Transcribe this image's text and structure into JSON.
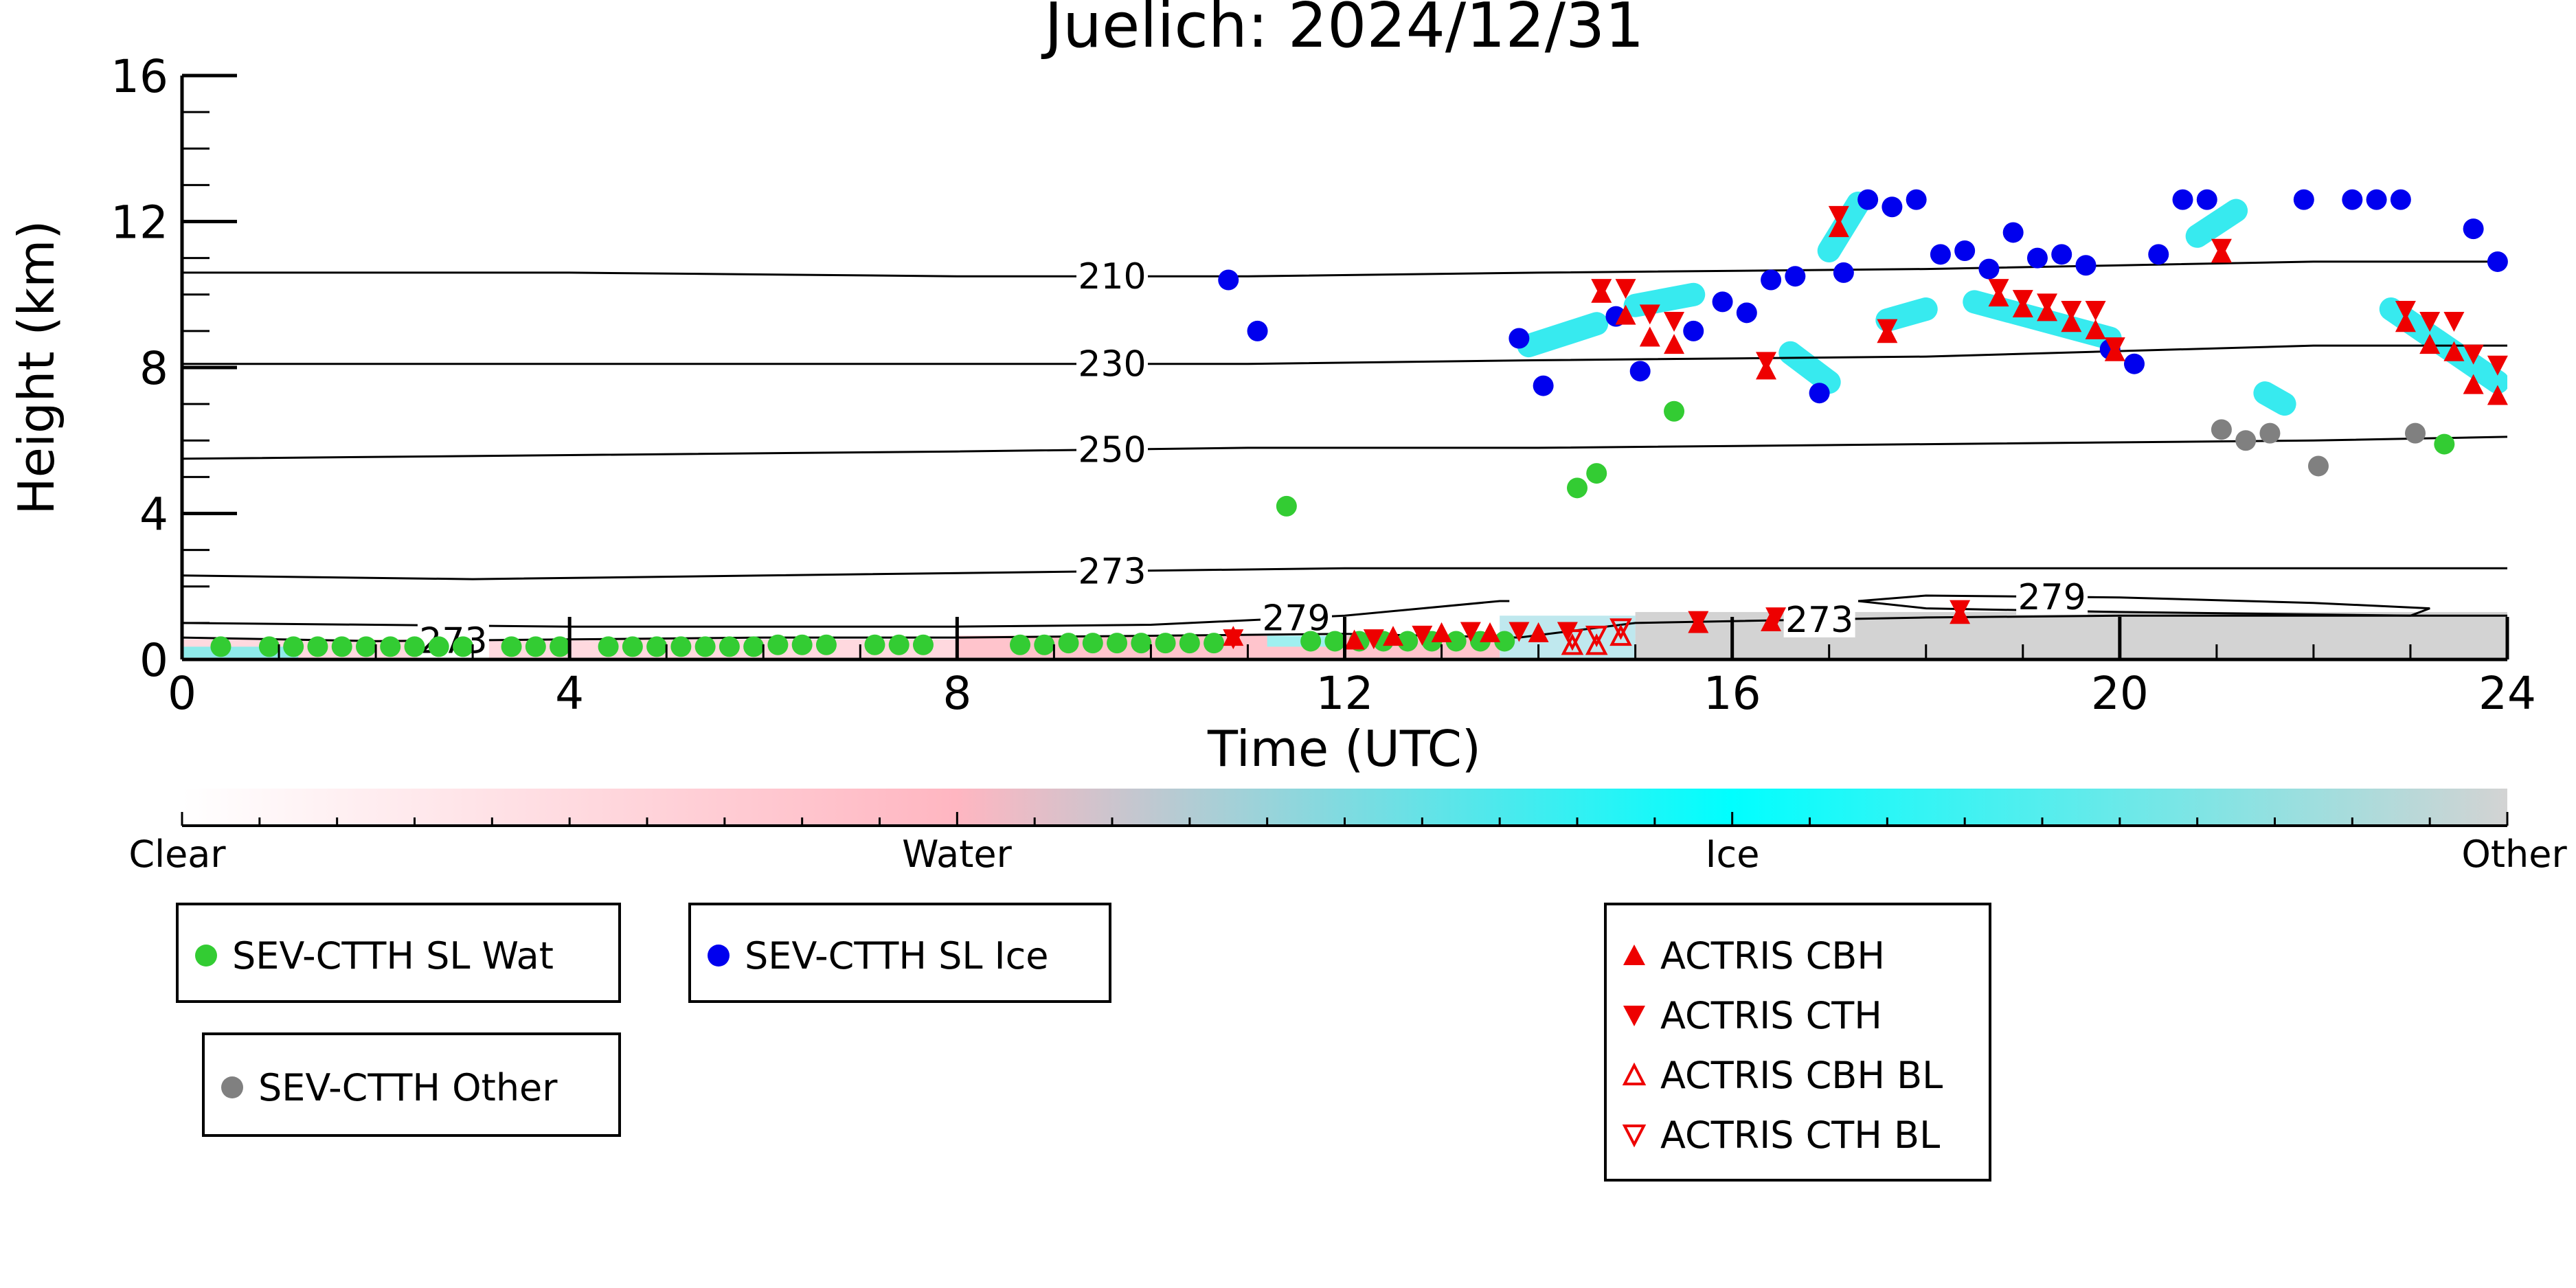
{
  "chart_data": {
    "type": "scatter",
    "title": "Juelich: 2024/12/31",
    "xlabel": "Time (UTC)",
    "ylabel": "Height (km)",
    "xlim": [
      0,
      24
    ],
    "ylim": [
      0,
      16
    ],
    "x_ticks": [
      0,
      4,
      8,
      12,
      16,
      20,
      24
    ],
    "y_ticks": [
      0,
      4,
      8,
      12,
      16
    ],
    "colorbar": {
      "labels": [
        "Clear",
        "Water",
        "Ice",
        "Other"
      ],
      "colors": [
        "#ffffff",
        "#ffb6c1",
        "#00ffff",
        "#d3d3d3"
      ]
    },
    "contours": [
      {
        "label": "210",
        "label_x": 9.6,
        "points": [
          [
            0,
            10.6
          ],
          [
            4,
            10.6
          ],
          [
            8,
            10.5
          ],
          [
            11,
            10.5
          ],
          [
            14,
            10.6
          ],
          [
            18,
            10.7
          ],
          [
            22,
            10.9
          ],
          [
            24,
            10.9
          ]
        ]
      },
      {
        "label": "230",
        "label_x": 9.6,
        "points": [
          [
            0,
            8.1
          ],
          [
            4,
            8.1
          ],
          [
            8,
            8.1
          ],
          [
            11,
            8.1
          ],
          [
            14,
            8.2
          ],
          [
            18,
            8.3
          ],
          [
            22,
            8.6
          ],
          [
            24,
            8.6
          ]
        ]
      },
      {
        "label": "250",
        "label_x": 9.6,
        "points": [
          [
            0,
            5.5
          ],
          [
            4,
            5.6
          ],
          [
            8,
            5.7
          ],
          [
            11,
            5.8
          ],
          [
            14,
            5.8
          ],
          [
            18,
            5.9
          ],
          [
            22,
            6.0
          ],
          [
            24,
            6.1
          ]
        ]
      },
      {
        "label": "273",
        "label_x": 9.6,
        "points": [
          [
            0,
            2.3
          ],
          [
            3,
            2.2
          ],
          [
            6,
            2.3
          ],
          [
            9,
            2.4
          ],
          [
            12,
            2.5
          ],
          [
            16,
            2.5
          ],
          [
            20,
            2.5
          ],
          [
            24,
            2.5
          ]
        ]
      },
      {
        "label": "279",
        "label_x": 11.5,
        "points": [
          [
            0,
            1.0
          ],
          [
            4,
            0.9
          ],
          [
            8,
            0.9
          ],
          [
            10,
            0.95
          ],
          [
            12,
            1.2
          ],
          [
            13.6,
            1.6
          ],
          [
            13.7,
            1.6
          ]
        ]
      },
      {
        "label": "273",
        "label_x": 16.9,
        "points": [
          [
            13.8,
            0.6
          ],
          [
            15,
            1.0
          ],
          [
            16,
            1.05
          ],
          [
            18,
            1.15
          ],
          [
            20,
            1.2
          ],
          [
            23,
            1.2
          ],
          [
            24,
            1.2
          ]
        ]
      },
      {
        "label": "279",
        "label_x": 19.3,
        "points": [
          [
            17.3,
            1.6
          ],
          [
            18,
            1.75
          ],
          [
            20,
            1.7
          ],
          [
            22,
            1.55
          ],
          [
            23.2,
            1.4
          ],
          [
            23.0,
            1.2
          ],
          [
            20,
            1.3
          ],
          [
            18,
            1.4
          ],
          [
            17.3,
            1.6
          ]
        ]
      },
      {
        "label": "273",
        "label_x": 2.8,
        "points": [
          [
            0,
            0.6
          ],
          [
            2,
            0.5
          ],
          [
            4,
            0.55
          ],
          [
            6,
            0.6
          ],
          [
            8,
            0.6
          ],
          [
            10,
            0.65
          ],
          [
            12,
            0.7
          ],
          [
            13.8,
            0.6
          ]
        ]
      }
    ],
    "series": [
      {
        "name": "SEV-CTTH SL Wat",
        "marker": "circle",
        "color": "#33cc33",
        "points": [
          [
            0.4,
            0.35
          ],
          [
            0.9,
            0.35
          ],
          [
            1.15,
            0.35
          ],
          [
            1.4,
            0.35
          ],
          [
            1.65,
            0.35
          ],
          [
            1.9,
            0.35
          ],
          [
            2.15,
            0.35
          ],
          [
            2.4,
            0.35
          ],
          [
            2.65,
            0.35
          ],
          [
            2.9,
            0.35
          ],
          [
            3.4,
            0.35
          ],
          [
            3.65,
            0.35
          ],
          [
            3.9,
            0.35
          ],
          [
            4.4,
            0.35
          ],
          [
            4.65,
            0.35
          ],
          [
            4.9,
            0.35
          ],
          [
            5.15,
            0.35
          ],
          [
            5.4,
            0.35
          ],
          [
            5.65,
            0.35
          ],
          [
            5.9,
            0.35
          ],
          [
            6.15,
            0.4
          ],
          [
            6.4,
            0.4
          ],
          [
            6.65,
            0.4
          ],
          [
            7.15,
            0.4
          ],
          [
            7.4,
            0.4
          ],
          [
            7.65,
            0.4
          ],
          [
            8.65,
            0.4
          ],
          [
            8.9,
            0.4
          ],
          [
            9.15,
            0.45
          ],
          [
            9.4,
            0.45
          ],
          [
            9.65,
            0.45
          ],
          [
            9.9,
            0.45
          ],
          [
            10.15,
            0.45
          ],
          [
            10.4,
            0.45
          ],
          [
            10.65,
            0.45
          ],
          [
            11.65,
            0.5
          ],
          [
            11.9,
            0.5
          ],
          [
            12.15,
            0.5
          ],
          [
            12.4,
            0.5
          ],
          [
            12.65,
            0.5
          ],
          [
            12.9,
            0.5
          ],
          [
            13.15,
            0.5
          ],
          [
            13.4,
            0.5
          ],
          [
            13.65,
            0.5
          ],
          [
            11.4,
            4.2
          ],
          [
            14.4,
            4.7
          ],
          [
            14.6,
            5.1
          ],
          [
            15.4,
            6.8
          ],
          [
            23.35,
            5.9
          ]
        ]
      },
      {
        "name": "SEV-CTTH SL Ice",
        "marker": "circle",
        "color": "#0000ee",
        "points": [
          [
            10.8,
            10.4
          ],
          [
            11.1,
            9.0
          ],
          [
            13.8,
            8.8
          ],
          [
            14.05,
            7.5
          ],
          [
            14.8,
            9.4
          ],
          [
            15.05,
            7.9
          ],
          [
            15.6,
            9.0
          ],
          [
            15.9,
            9.8
          ],
          [
            16.15,
            9.5
          ],
          [
            16.4,
            10.4
          ],
          [
            16.65,
            10.5
          ],
          [
            16.9,
            7.3
          ],
          [
            17.15,
            10.6
          ],
          [
            17.4,
            12.6
          ],
          [
            17.65,
            12.4
          ],
          [
            17.9,
            12.6
          ],
          [
            18.15,
            11.1
          ],
          [
            18.4,
            11.2
          ],
          [
            18.65,
            10.7
          ],
          [
            18.9,
            11.7
          ],
          [
            19.15,
            11.0
          ],
          [
            19.4,
            11.1
          ],
          [
            19.65,
            10.8
          ],
          [
            19.9,
            8.5
          ],
          [
            20.15,
            8.1
          ],
          [
            20.4,
            11.1
          ],
          [
            20.65,
            12.6
          ],
          [
            20.9,
            12.6
          ],
          [
            21.9,
            12.6
          ],
          [
            22.4,
            12.6
          ],
          [
            22.65,
            12.6
          ],
          [
            22.9,
            12.6
          ],
          [
            23.65,
            11.8
          ],
          [
            23.9,
            10.9
          ]
        ]
      },
      {
        "name": "SEV-CTTH Other",
        "marker": "circle",
        "color": "#808080",
        "points": [
          [
            21.05,
            6.3
          ],
          [
            21.3,
            6.0
          ],
          [
            21.55,
            6.2
          ],
          [
            22.05,
            5.3
          ],
          [
            23.05,
            6.2
          ]
        ]
      },
      {
        "name": "ACTRIS CBH",
        "marker": "triangle-up",
        "color": "#ee0000",
        "points": [
          [
            10.85,
            0.6
          ],
          [
            12.1,
            0.5
          ],
          [
            12.5,
            0.6
          ],
          [
            13.0,
            0.7
          ],
          [
            13.5,
            0.7
          ],
          [
            14.0,
            0.7
          ],
          [
            14.65,
            10.0
          ],
          [
            14.9,
            9.4
          ],
          [
            15.15,
            8.8
          ],
          [
            15.4,
            8.6
          ],
          [
            15.65,
            0.95
          ],
          [
            16.35,
            7.9
          ],
          [
            16.4,
            1.0
          ],
          [
            17.1,
            11.8
          ],
          [
            17.6,
            8.9
          ],
          [
            18.35,
            1.2
          ],
          [
            18.75,
            9.9
          ],
          [
            19.0,
            9.6
          ],
          [
            19.25,
            9.5
          ],
          [
            19.5,
            9.2
          ],
          [
            19.75,
            9.0
          ],
          [
            19.95,
            8.4
          ],
          [
            21.05,
            11.1
          ],
          [
            22.95,
            9.2
          ],
          [
            23.2,
            8.6
          ],
          [
            23.45,
            8.4
          ],
          [
            23.65,
            7.5
          ],
          [
            23.9,
            7.2
          ]
        ]
      },
      {
        "name": "ACTRIS CTH",
        "marker": "triangle-down",
        "color": "#ee0000",
        "points": [
          [
            10.85,
            0.6
          ],
          [
            12.3,
            0.6
          ],
          [
            12.8,
            0.7
          ],
          [
            13.3,
            0.8
          ],
          [
            13.8,
            0.8
          ],
          [
            14.3,
            0.8
          ],
          [
            14.65,
            10.2
          ],
          [
            14.9,
            10.2
          ],
          [
            15.15,
            9.5
          ],
          [
            15.4,
            9.3
          ],
          [
            15.65,
            1.1
          ],
          [
            16.35,
            8.2
          ],
          [
            16.45,
            1.2
          ],
          [
            17.1,
            12.2
          ],
          [
            17.6,
            9.1
          ],
          [
            18.35,
            1.4
          ],
          [
            18.75,
            10.2
          ],
          [
            19.0,
            9.9
          ],
          [
            19.25,
            9.8
          ],
          [
            19.5,
            9.6
          ],
          [
            19.75,
            9.6
          ],
          [
            19.95,
            8.6
          ],
          [
            21.05,
            11.3
          ],
          [
            22.95,
            9.6
          ],
          [
            23.2,
            9.3
          ],
          [
            23.45,
            9.3
          ],
          [
            23.65,
            8.4
          ],
          [
            23.9,
            8.1
          ]
        ]
      },
      {
        "name": "ACTRIS CBH BL",
        "marker": "triangle-up-open",
        "color": "#ee0000",
        "points": [
          [
            14.35,
            0.35
          ],
          [
            14.6,
            0.35
          ],
          [
            14.85,
            0.6
          ]
        ]
      },
      {
        "name": "ACTRIS CTH BL",
        "marker": "triangle-down-open",
        "color": "#ee0000",
        "points": [
          [
            14.35,
            0.6
          ],
          [
            14.6,
            0.7
          ],
          [
            14.85,
            0.9
          ]
        ]
      }
    ]
  },
  "legends": [
    {
      "items": [
        "SEV-CTTH SL Wat"
      ]
    },
    {
      "items": [
        "SEV-CTTH SL Ice"
      ]
    },
    {
      "items": [
        "SEV-CTTH Other"
      ]
    },
    {
      "items": [
        "ACTRIS CBH",
        "ACTRIS CTH",
        "ACTRIS CBH BL",
        "ACTRIS CTH BL"
      ]
    }
  ]
}
